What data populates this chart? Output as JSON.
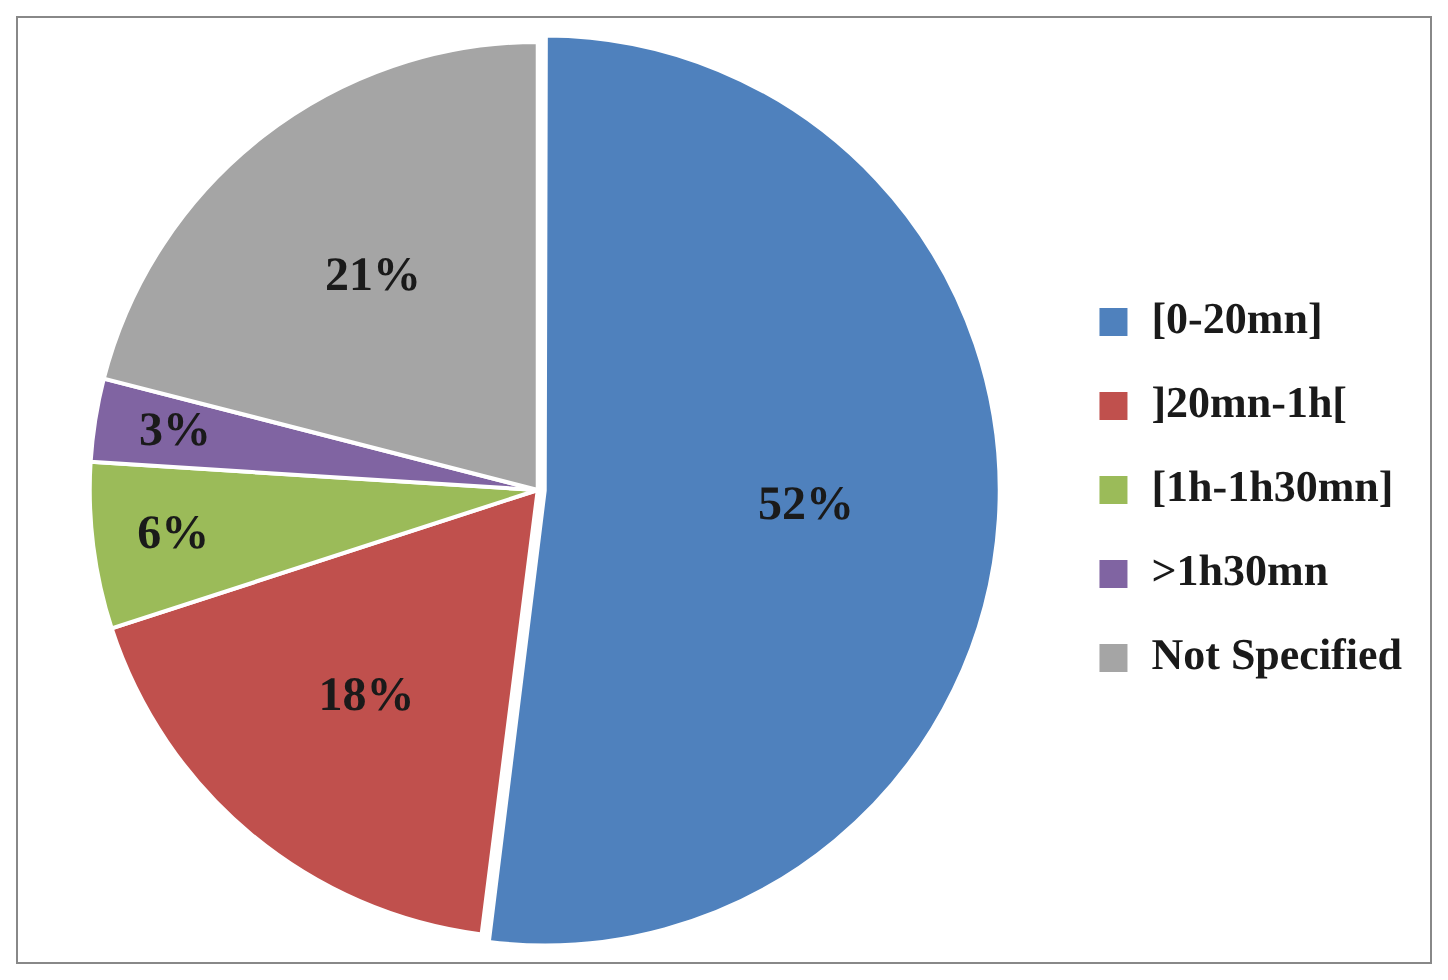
{
  "chart_data": {
    "type": "pie",
    "categories": [
      "[0-20mn]",
      "]20mn-1h[",
      "[1h-1h30mn]",
      ">1h30mn",
      "Not Specified"
    ],
    "values": [
      52,
      18,
      6,
      3,
      21
    ],
    "colors": [
      "#4f81bd",
      "#c0504d",
      "#9bbb59",
      "#8064a2",
      "#a5a5a5"
    ],
    "value_labels": [
      "52%",
      "18%",
      "6%",
      "3%",
      "21%"
    ],
    "legend": "right"
  }
}
